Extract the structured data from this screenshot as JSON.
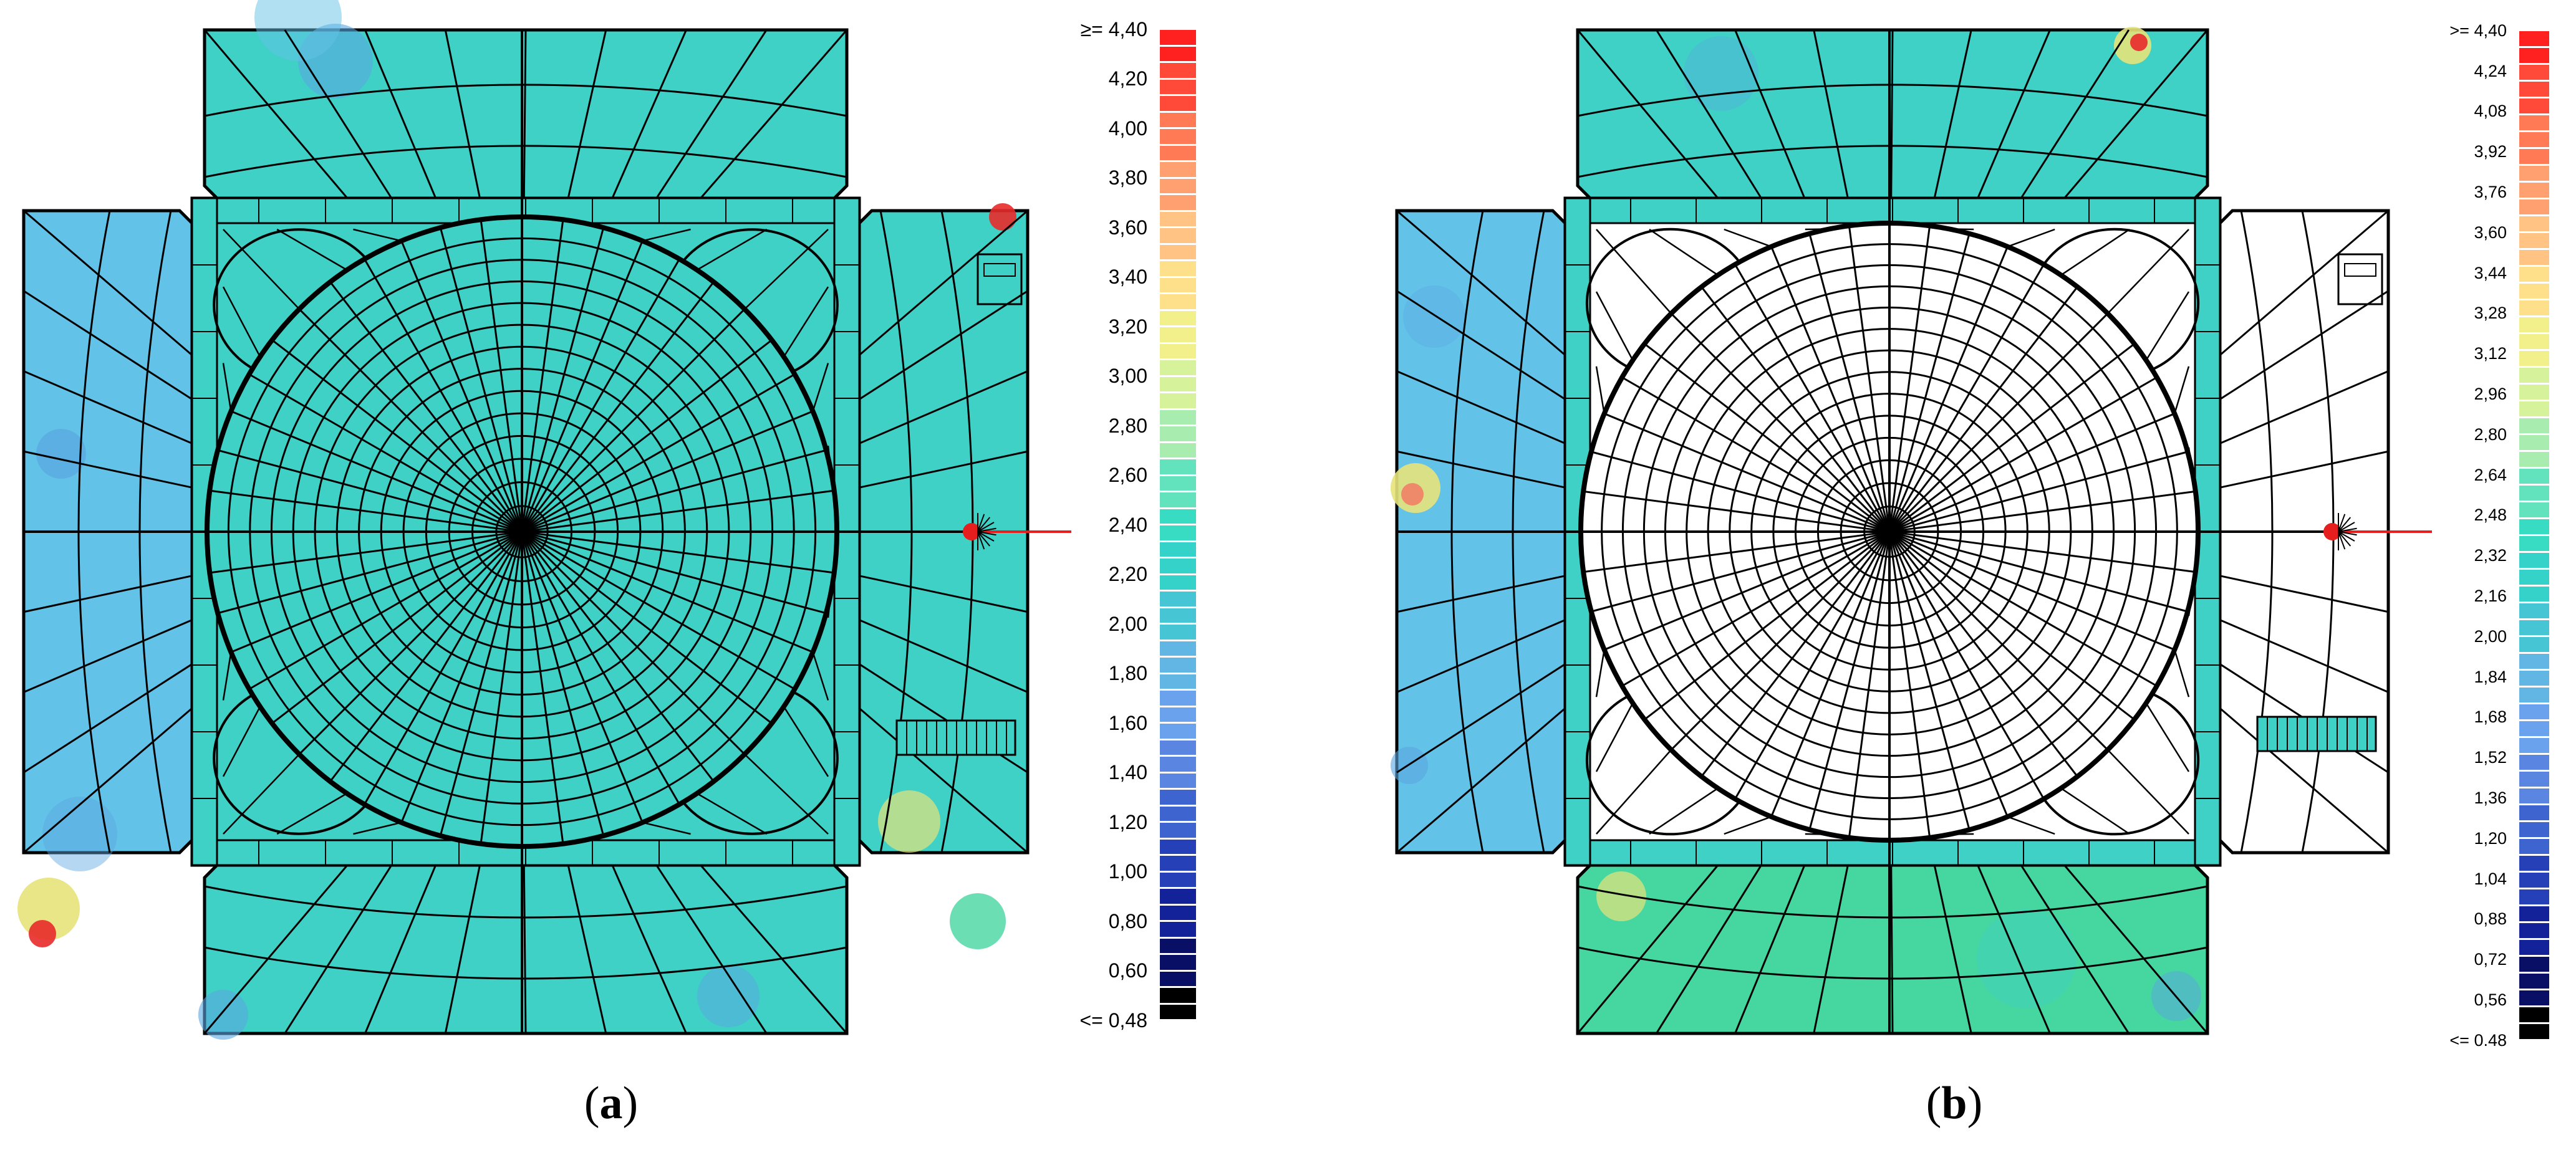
{
  "panels": [
    {
      "id": "a",
      "caption_letter": "a",
      "east_annex_filled": true,
      "scale_labels": [
        "≥= 4,40",
        "4,20",
        "4,00",
        "3,80",
        "3,60",
        "3,40",
        "3,20",
        "3,00",
        "2,80",
        "2,60",
        "2,40",
        "2,20",
        "2,00",
        "1,80",
        "1,60",
        "1,40",
        "1,20",
        "1,00",
        "0,80",
        "0,60",
        "<= 0,48"
      ]
    },
    {
      "id": "b",
      "caption_letter": "b",
      "east_annex_filled": false,
      "scale_labels": [
        ">= 4,40",
        "4,24",
        "4,08",
        "3,92",
        "3,76",
        "3,60",
        "3,44",
        "3,28",
        "3,12",
        "2,96",
        "2,80",
        "2,64",
        "2,48",
        "2,32",
        "2,16",
        "2,00",
        "1,84",
        "1,68",
        "1,52",
        "1,36",
        "1,20",
        "1,04",
        "0,88",
        "0,72",
        "0,56",
        "<= 0.48"
      ]
    }
  ],
  "colors": {
    "background": "#ffffff",
    "field_main": "#3fd1c6",
    "field_light": "#63c2e8",
    "field_blue": "#5aa6e0",
    "field_green": "#46d6a0",
    "field_warm": "#e6e37a",
    "field_hot": "#f07f66",
    "field_red": "#e82a2a",
    "mesh_line": "#000000",
    "marker_red": "#e61e1e",
    "scale_stops": [
      "#ff2020",
      "#ff4a3a",
      "#ff7a55",
      "#ffa070",
      "#ffc384",
      "#ffe08a",
      "#f2f08a",
      "#d6f29a",
      "#a9ecb0",
      "#63e3bd",
      "#38dcc2",
      "#34d2c8",
      "#46c6d4",
      "#62b6e4",
      "#6aa2ee",
      "#5a86e2",
      "#3e64d0",
      "#2640b8",
      "#14229a",
      "#0a0f66",
      "#000000"
    ]
  }
}
